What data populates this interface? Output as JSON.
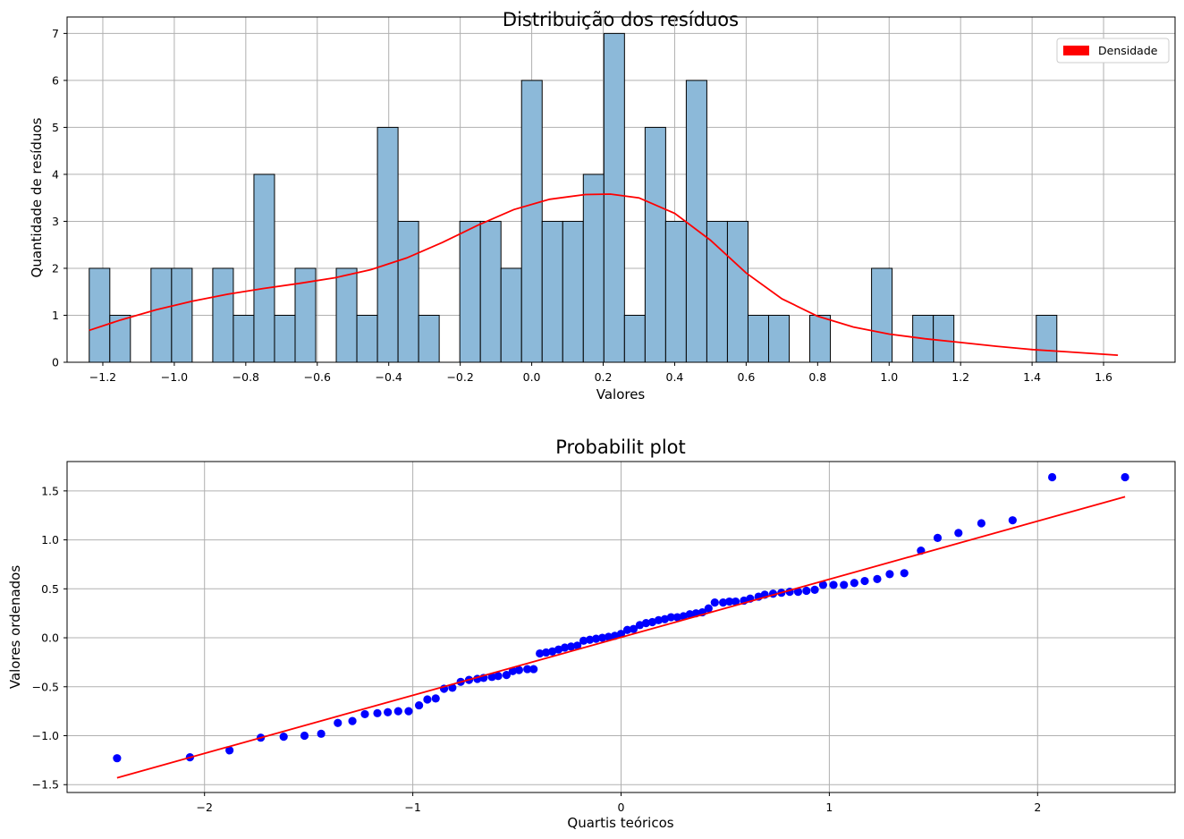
{
  "chart_data": [
    {
      "type": "bar",
      "title": "Distribuição dos resíduos",
      "xlabel": "Valores",
      "ylabel": "Quantidade de resíduos",
      "xlim": [
        -1.3,
        1.8
      ],
      "ylim": [
        0,
        7.35
      ],
      "grid": true,
      "legend": {
        "entries": [
          "Densidade"
        ],
        "placement": "top-right",
        "colors": [
          "#ff0000"
        ]
      },
      "bin_start": -1.238,
      "bin_width": 0.0576,
      "bars": [
        2,
        1,
        0,
        2,
        2,
        0,
        2,
        1,
        4,
        1,
        2,
        0,
        2,
        1,
        5,
        3,
        1,
        0,
        3,
        3,
        2,
        6,
        3,
        3,
        4,
        7,
        1,
        5,
        3,
        6,
        3,
        3,
        1,
        1,
        0,
        1,
        0,
        0,
        2,
        0,
        1,
        1,
        0,
        0,
        0,
        0,
        1
      ],
      "bar_color": "#8cb9d9",
      "x_ticks": [
        -1.2,
        -1.0,
        -0.8,
        -0.6,
        -0.4,
        -0.2,
        0.0,
        0.2,
        0.4,
        0.6,
        0.8,
        1.0,
        1.2,
        1.4,
        1.6
      ],
      "x_tick_labels": [
        "−1.2",
        "−1.0",
        "−0.8",
        "−0.6",
        "−0.4",
        "−0.2",
        "0.0",
        "0.2",
        "0.4",
        "0.6",
        "0.8",
        "1.0",
        "1.2",
        "1.4",
        "1.6"
      ],
      "y_ticks": [
        0,
        1,
        2,
        3,
        4,
        5,
        6,
        7
      ],
      "y_tick_labels": [
        "0",
        "1",
        "2",
        "3",
        "4",
        "5",
        "6",
        "7"
      ],
      "kde": {
        "name": "Densidade",
        "color": "#ff0000",
        "x": [
          -1.238,
          -1.15,
          -1.05,
          -0.95,
          -0.85,
          -0.75,
          -0.65,
          -0.55,
          -0.45,
          -0.35,
          -0.25,
          -0.15,
          -0.05,
          0.05,
          0.15,
          0.22,
          0.3,
          0.4,
          0.5,
          0.6,
          0.7,
          0.8,
          0.9,
          1.0,
          1.1,
          1.2,
          1.3,
          1.4,
          1.5,
          1.64
        ],
        "y": [
          0.68,
          0.9,
          1.12,
          1.3,
          1.45,
          1.57,
          1.68,
          1.8,
          1.97,
          2.22,
          2.55,
          2.92,
          3.25,
          3.47,
          3.57,
          3.58,
          3.5,
          3.17,
          2.6,
          1.9,
          1.35,
          0.98,
          0.75,
          0.6,
          0.5,
          0.42,
          0.34,
          0.27,
          0.22,
          0.15
        ]
      }
    },
    {
      "type": "scatter",
      "title": "Probabilit plot",
      "xlabel": "Quartis teóricos",
      "ylabel": "Valores ordenados",
      "xlim": [
        -2.66,
        2.66
      ],
      "ylim": [
        -1.58,
        1.8
      ],
      "grid": true,
      "x_ticks": [
        -2,
        -1,
        0,
        1,
        2
      ],
      "x_tick_labels": [
        "−2",
        "−1",
        "0",
        "1",
        "2"
      ],
      "y_ticks": [
        -1.5,
        -1.0,
        -0.5,
        0.0,
        0.5,
        1.0,
        1.5
      ],
      "y_tick_labels": [
        "−1.5",
        "−1.0",
        "−0.5",
        "0.0",
        "0.5",
        "1.0",
        "1.5"
      ],
      "point_color": "#0000ff",
      "points": {
        "x": [
          -2.42,
          -2.07,
          -1.88,
          -1.73,
          -1.62,
          -1.52,
          -1.44,
          -1.36,
          -1.29,
          -1.23,
          -1.17,
          -1.12,
          -1.07,
          -1.02,
          -0.97,
          -0.93,
          -0.89,
          -0.85,
          -0.81,
          -0.77,
          -0.73,
          -0.69,
          -0.66,
          -0.62,
          -0.59,
          -0.55,
          -0.52,
          -0.49,
          -0.45,
          -0.42,
          -0.39,
          -0.36,
          -0.33,
          -0.3,
          -0.27,
          -0.24,
          -0.21,
          -0.18,
          -0.15,
          -0.12,
          -0.09,
          -0.06,
          -0.03,
          0.0,
          0.03,
          0.06,
          0.09,
          0.12,
          0.15,
          0.18,
          0.21,
          0.24,
          0.27,
          0.3,
          0.33,
          0.36,
          0.39,
          0.42,
          0.45,
          0.49,
          0.52,
          0.55,
          0.59,
          0.62,
          0.66,
          0.69,
          0.73,
          0.77,
          0.81,
          0.85,
          0.89,
          0.93,
          0.97,
          1.02,
          1.07,
          1.12,
          1.17,
          1.23,
          1.29,
          1.36,
          1.44,
          1.52,
          1.62,
          1.73,
          1.88,
          2.07,
          2.42
        ],
        "y": [
          -1.23,
          -1.22,
          -1.15,
          -1.02,
          -1.01,
          -1.0,
          -0.98,
          -0.87,
          -0.85,
          -0.78,
          -0.77,
          -0.76,
          -0.75,
          -0.75,
          -0.69,
          -0.63,
          -0.62,
          -0.52,
          -0.51,
          -0.45,
          -0.43,
          -0.42,
          -0.41,
          -0.4,
          -0.39,
          -0.38,
          -0.34,
          -0.33,
          -0.32,
          -0.32,
          -0.16,
          -0.15,
          -0.14,
          -0.12,
          -0.1,
          -0.09,
          -0.08,
          -0.03,
          -0.02,
          -0.01,
          0.0,
          0.01,
          0.02,
          0.04,
          0.08,
          0.09,
          0.13,
          0.15,
          0.16,
          0.18,
          0.19,
          0.21,
          0.21,
          0.22,
          0.24,
          0.25,
          0.26,
          0.3,
          0.36,
          0.36,
          0.37,
          0.37,
          0.38,
          0.4,
          0.42,
          0.44,
          0.45,
          0.46,
          0.47,
          0.47,
          0.48,
          0.49,
          0.54,
          0.54,
          0.54,
          0.56,
          0.58,
          0.6,
          0.65,
          0.66,
          0.89,
          1.02,
          1.07,
          1.17,
          1.2,
          1.64,
          1.64
        ]
      },
      "fit_line": {
        "color": "#ff0000",
        "x": [
          -2.42,
          2.42
        ],
        "y": [
          -1.43,
          1.44
        ]
      }
    }
  ]
}
